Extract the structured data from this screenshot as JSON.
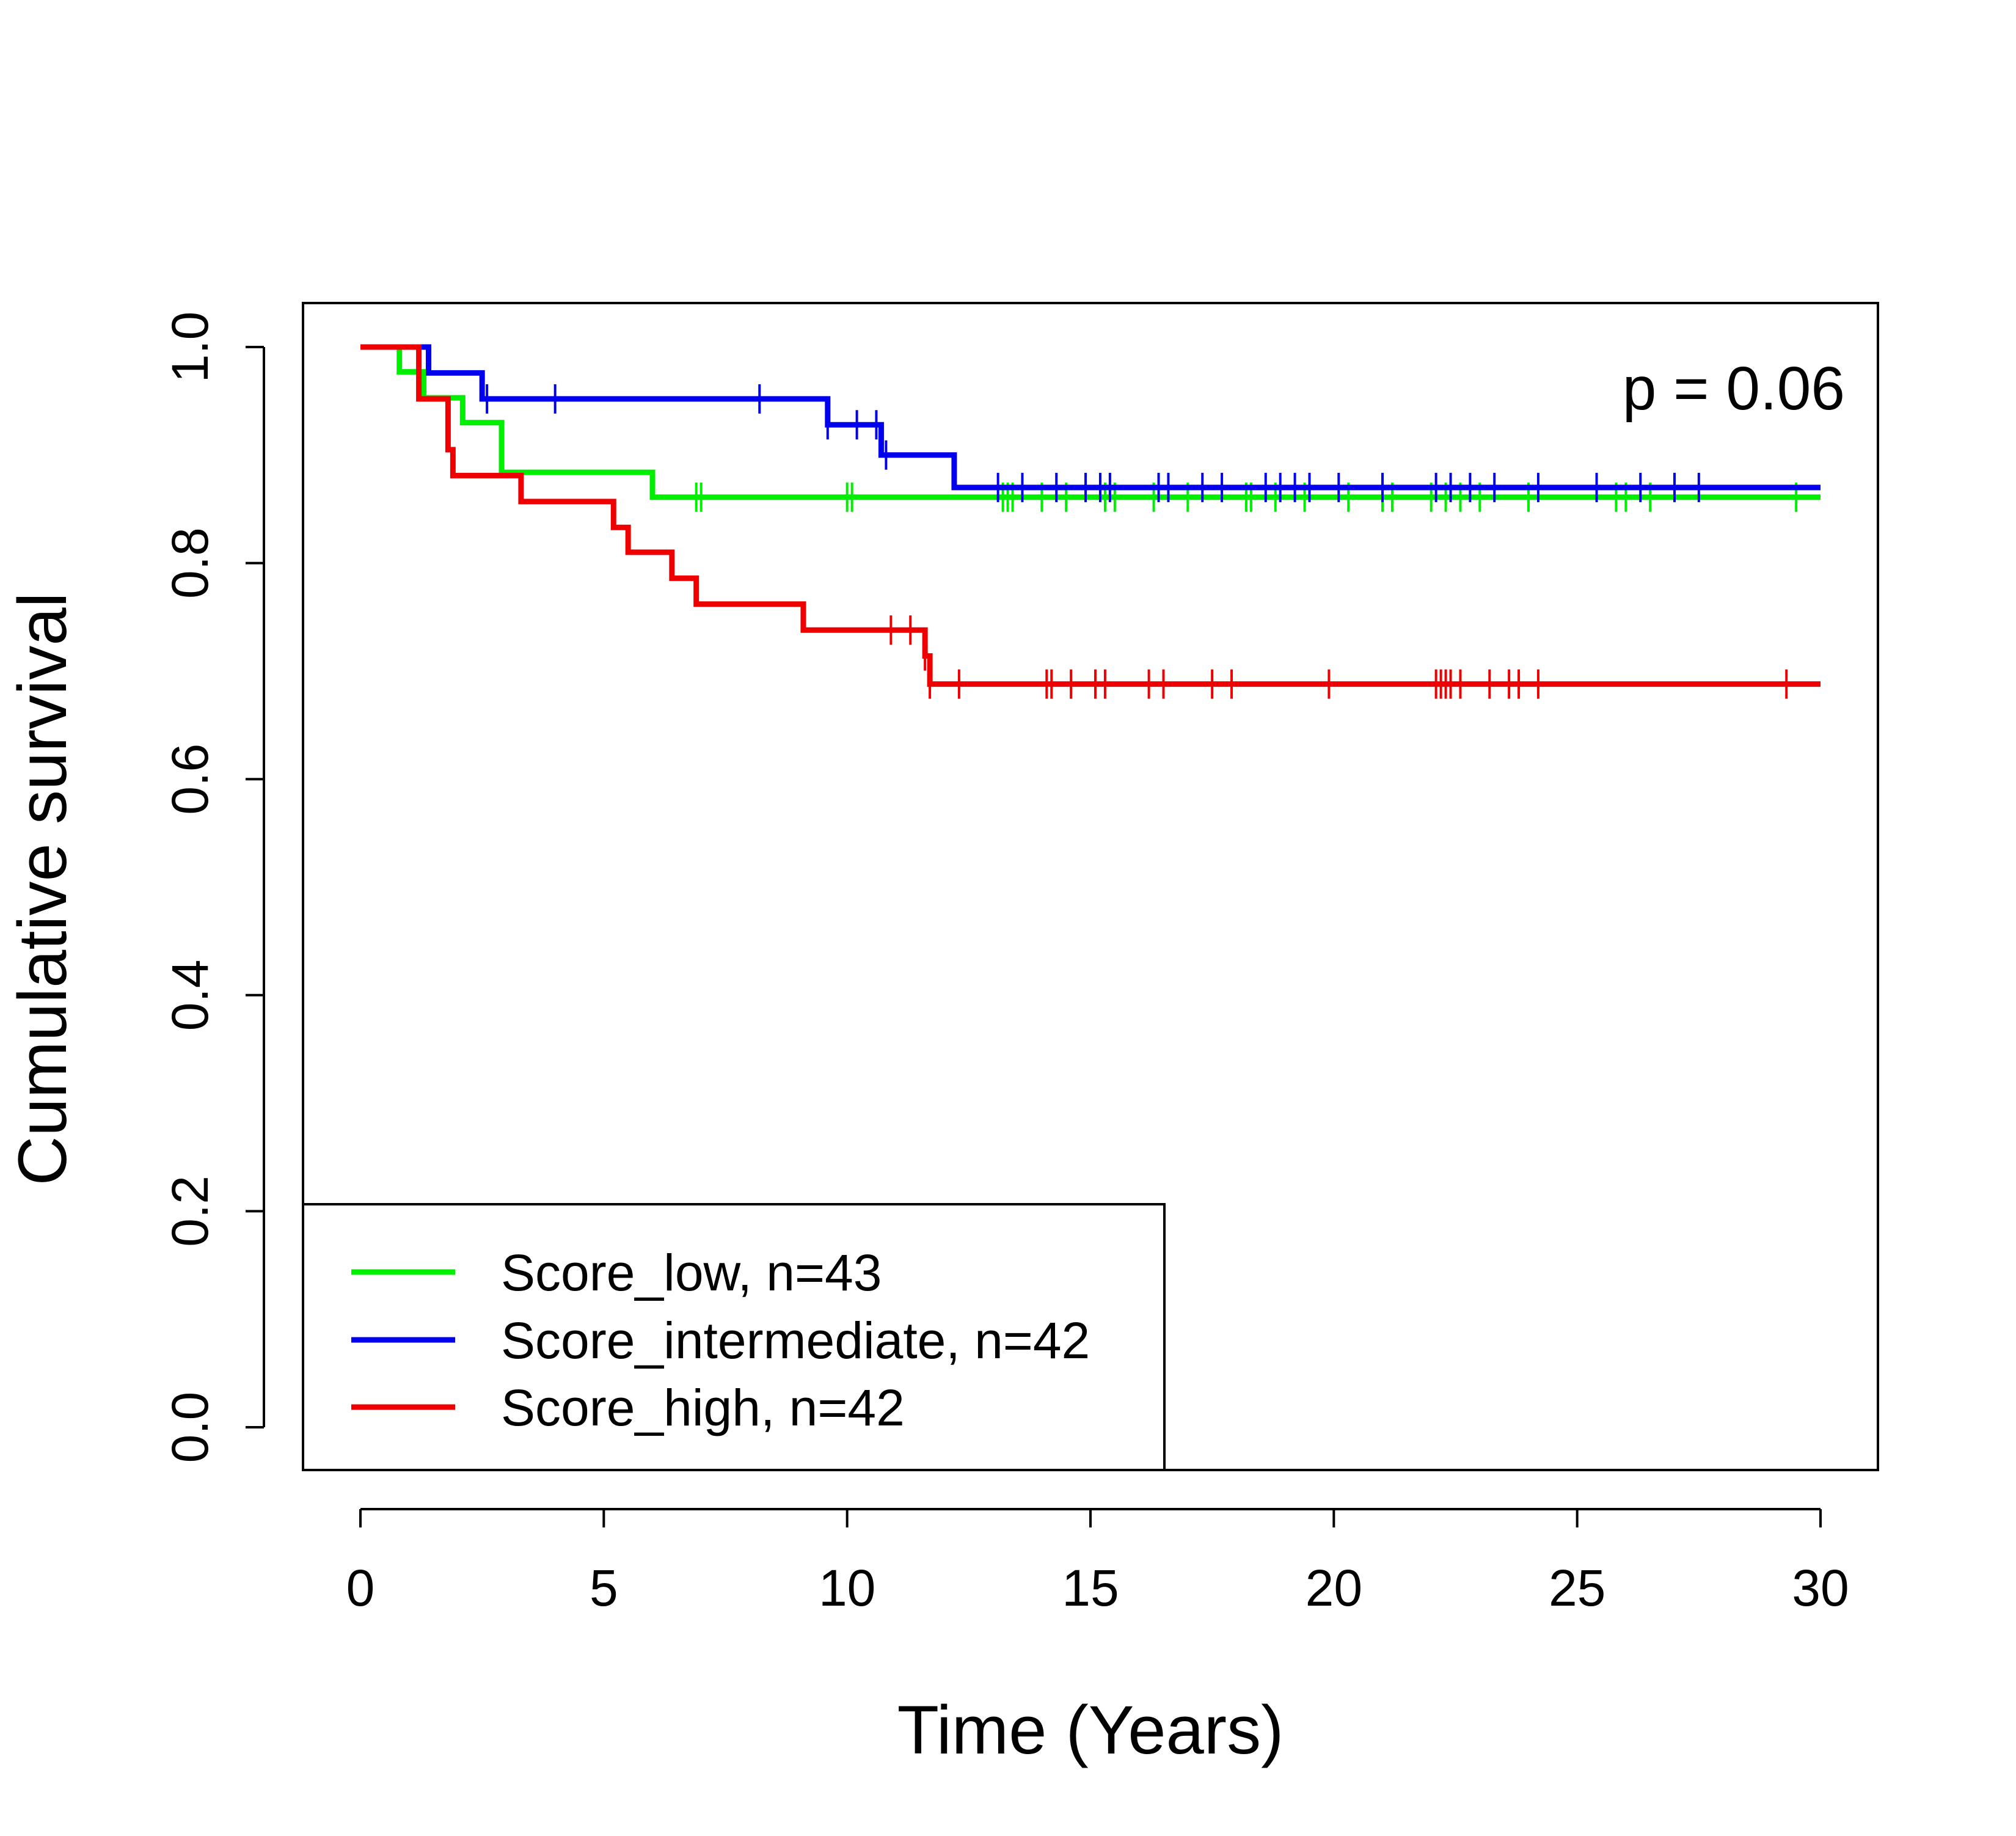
{
  "chart_data": {
    "type": "line",
    "subtype": "kaplan-meier",
    "title": "",
    "xlabel": "Time (Years)",
    "ylabel": "Cumulative survival",
    "xlim": [
      -1.2,
      31.2
    ],
    "ylim": [
      -0.04,
      1.04
    ],
    "xticks": [
      0,
      5,
      10,
      15,
      20,
      25,
      30
    ],
    "yticks": [
      0.0,
      0.2,
      0.4,
      0.6,
      0.8,
      1.0
    ],
    "xtick_labels": [
      "0",
      "5",
      "10",
      "15",
      "20",
      "25",
      "30"
    ],
    "ytick_labels": [
      "0.0",
      "0.2",
      "0.4",
      "0.6",
      "0.8",
      "1.0"
    ],
    "grid": false,
    "legend_position": "bottom-left",
    "annotation": "p = 0.06",
    "series": [
      {
        "name": "Score_low, n=43",
        "color": "#00ee00",
        "steps": [
          [
            0,
            1.0
          ],
          [
            0.8,
            0.977
          ],
          [
            1.3,
            0.953
          ],
          [
            2.1,
            0.93
          ],
          [
            2.9,
            0.884
          ],
          [
            6.0,
            0.861
          ],
          [
            30.0,
            0.861
          ]
        ],
        "censored": [
          6.9,
          7.0,
          10.0,
          10.1,
          13.2,
          13.3,
          13.4,
          14.0,
          14.5,
          15.3,
          15.5,
          16.3,
          17.0,
          18.2,
          18.3,
          18.8,
          19.4,
          20.3,
          21.0,
          21.2,
          22.0,
          22.3,
          22.6,
          23.0,
          24.0,
          25.8,
          26.0,
          26.5,
          29.5
        ]
      },
      {
        "name": "Score_intermediate, n=42",
        "color": "#0000ee",
        "steps": [
          [
            0,
            1.0
          ],
          [
            1.4,
            0.976
          ],
          [
            2.5,
            0.952
          ],
          [
            9.6,
            0.928
          ],
          [
            10.7,
            0.9
          ],
          [
            12.2,
            0.87
          ],
          [
            30.0,
            0.87
          ]
        ],
        "censored": [
          2.6,
          4.0,
          8.2,
          9.6,
          10.2,
          10.6,
          10.8,
          13.1,
          13.6,
          14.3,
          14.9,
          15.2,
          15.4,
          16.4,
          16.6,
          17.3,
          17.7,
          18.6,
          18.9,
          19.2,
          19.5,
          20.1,
          21.0,
          22.1,
          22.4,
          22.8,
          23.3,
          24.2,
          25.4,
          26.3,
          27.0,
          27.5
        ]
      },
      {
        "name": "Score_high, n=42",
        "color": "#ee0000",
        "steps": [
          [
            0,
            1.0
          ],
          [
            1.2,
            0.976
          ],
          [
            1.2,
            0.952
          ],
          [
            1.8,
            0.905
          ],
          [
            1.9,
            0.881
          ],
          [
            3.3,
            0.857
          ],
          [
            5.2,
            0.833
          ],
          [
            5.5,
            0.81
          ],
          [
            6.4,
            0.786
          ],
          [
            6.9,
            0.762
          ],
          [
            9.1,
            0.738
          ],
          [
            11.6,
            0.714
          ],
          [
            11.7,
            0.688
          ],
          [
            30.0,
            0.688
          ]
        ],
        "censored": [
          10.9,
          11.3,
          11.6,
          11.7,
          12.3,
          14.1,
          14.2,
          14.6,
          15.1,
          15.3,
          16.2,
          16.5,
          17.5,
          17.9,
          19.9,
          22.1,
          22.2,
          22.3,
          22.4,
          22.6,
          23.2,
          23.6,
          23.8,
          24.2,
          29.3
        ]
      }
    ]
  }
}
